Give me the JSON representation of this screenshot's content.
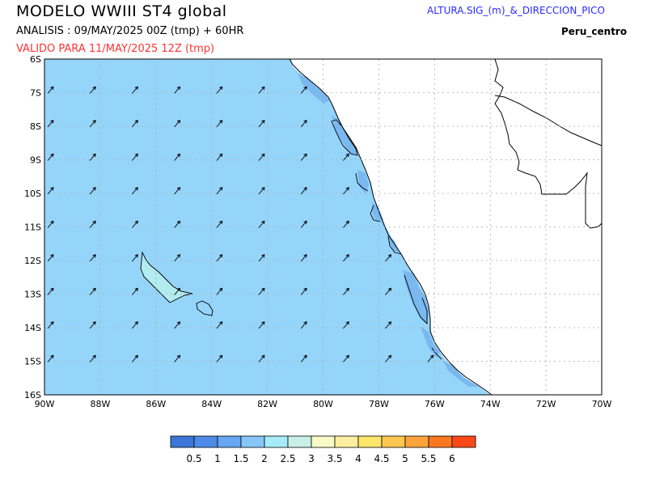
{
  "header": {
    "title": "MODELO WWIII ST4 global",
    "analysis": "ANALISIS : 09/MAY/2025 00Z  (tmp) + 60HR",
    "valid": "VALIDO PARA  11/MAY/2025 12Z  (tmp)",
    "parameter": "ALTURA.SIG_(m)_&_DIRECCION_PICO",
    "region": "Peru_centro"
  },
  "axes": {
    "lat_labels": [
      "6S",
      "7S",
      "8S",
      "9S",
      "10S",
      "11S",
      "12S",
      "13S",
      "14S",
      "15S",
      "16S"
    ],
    "lon_labels": [
      "90W",
      "88W",
      "86W",
      "84W",
      "82W",
      "80W",
      "78W",
      "76W",
      "74W",
      "72W",
      "70W"
    ],
    "lon_range": [
      -90,
      -70
    ],
    "lat_range": [
      -16,
      -6
    ]
  },
  "colorbar": {
    "labels": [
      "0.5",
      "1",
      "1.5",
      "2",
      "2.5",
      "3",
      "3.5",
      "4",
      "4.5",
      "5",
      "5.5",
      "6"
    ],
    "colors": [
      "#3b76d8",
      "#4c8ce8",
      "#66a6f2",
      "#86c6f8",
      "#a6ecf8",
      "#c8f0e4",
      "#fafac8",
      "#fcf0a0",
      "#fce66c",
      "#fcc650",
      "#fca43c",
      "#fc7820",
      "#fc4818"
    ]
  },
  "map": {
    "sea_color": "#96d5fa",
    "nearshore_color": "#7ab8f0",
    "high_color": "#b2ecf0",
    "wave_direction_deg": 40
  }
}
